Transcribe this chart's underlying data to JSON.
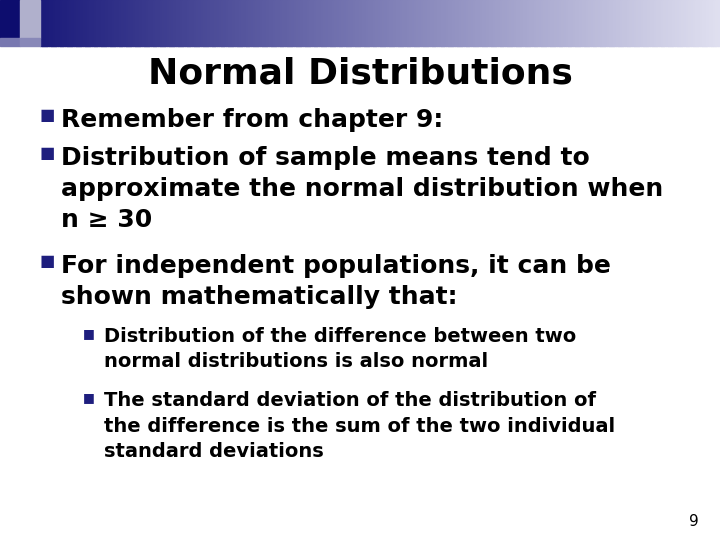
{
  "title": "Normal Distributions",
  "title_fontsize": 26,
  "background_color": "#ffffff",
  "text_color": "#000000",
  "bullet_color": "#1e1e7e",
  "page_number": "9",
  "bullet1_main": "Remember from chapter 9:",
  "bullet2_line1": "Distribution of sample means tend to",
  "bullet2_line2": "approximate the normal distribution when",
  "bullet2_line3": "n ≥ 30",
  "bullet3_line1": "For independent populations, it can be",
  "bullet3_line2": "shown mathematically that:",
  "sub1_line1": "Distribution of the difference between two",
  "sub1_line2": "normal distributions is also normal",
  "sub2_line1": "The standard deviation of the distribution of",
  "sub2_line2": "the difference is the sum of the two individual",
  "sub2_line3": "standard deviations",
  "main_fontsize": 18,
  "sub_fontsize": 14,
  "header_left_dark": "#1a1a7a",
  "header_right_light": "#d8d8ee",
  "sq1_color": "#0d0d6e",
  "sq2_color": "#7070a8",
  "sq3_color": "#a0a0c8",
  "sq4_color": "#b8b8d8"
}
